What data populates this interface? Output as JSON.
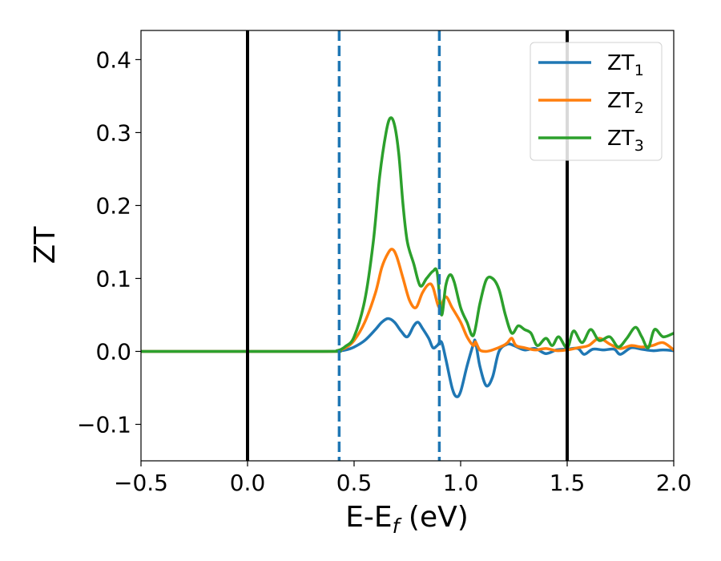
{
  "chart_data": {
    "type": "line",
    "title": "",
    "xlabel": "E-E",
    "xlabel_sub": "f",
    "xlabel_unit": " (eV)",
    "ylabel": "ZT",
    "xlim": [
      -0.5,
      2.0
    ],
    "ylim": [
      -0.15,
      0.44
    ],
    "xticks": [
      -0.5,
      0.0,
      0.5,
      1.0,
      1.5,
      2.0
    ],
    "xtick_labels": [
      "−0.5",
      "0.0",
      "0.5",
      "1.0",
      "1.5",
      "2.0"
    ],
    "yticks": [
      -0.1,
      0.0,
      0.1,
      0.2,
      0.3,
      0.4
    ],
    "ytick_labels": [
      "−0.1",
      "0.0",
      "0.1",
      "0.2",
      "0.3",
      "0.4"
    ],
    "grid": false,
    "legend_position": "top-right",
    "vlines": [
      {
        "x": 0.0,
        "style": "solid",
        "color": "#000000"
      },
      {
        "x": 1.5,
        "style": "solid",
        "color": "#000000"
      },
      {
        "x": 0.43,
        "style": "dashed",
        "color": "#1f77b4"
      },
      {
        "x": 0.9,
        "style": "dashed",
        "color": "#1f77b4"
      }
    ],
    "series": [
      {
        "name": "ZT",
        "sub": "1",
        "color": "#1f77b4",
        "points": [
          [
            -0.5,
            0
          ],
          [
            0.35,
            0
          ],
          [
            0.42,
            0.0005
          ],
          [
            0.46,
            0.002
          ],
          [
            0.5,
            0.006
          ],
          [
            0.55,
            0.015
          ],
          [
            0.6,
            0.03
          ],
          [
            0.63,
            0.04
          ],
          [
            0.66,
            0.045
          ],
          [
            0.69,
            0.04
          ],
          [
            0.72,
            0.028
          ],
          [
            0.75,
            0.02
          ],
          [
            0.78,
            0.035
          ],
          [
            0.8,
            0.04
          ],
          [
            0.82,
            0.032
          ],
          [
            0.85,
            0.018
          ],
          [
            0.87,
            0.005
          ],
          [
            0.89,
            0.008
          ],
          [
            0.91,
            0.013
          ],
          [
            0.93,
            -0.01
          ],
          [
            0.96,
            -0.05
          ],
          [
            0.98,
            -0.062
          ],
          [
            1.0,
            -0.055
          ],
          [
            1.03,
            -0.02
          ],
          [
            1.06,
            0.01
          ],
          [
            1.07,
            0.013
          ],
          [
            1.09,
            -0.02
          ],
          [
            1.12,
            -0.047
          ],
          [
            1.15,
            -0.035
          ],
          [
            1.18,
            0.0
          ],
          [
            1.22,
            0.01
          ],
          [
            1.25,
            0.008
          ],
          [
            1.3,
            0.002
          ],
          [
            1.35,
            0.004
          ],
          [
            1.4,
            -0.003
          ],
          [
            1.45,
            0.002
          ],
          [
            1.5,
            0.003
          ],
          [
            1.55,
            0.004
          ],
          [
            1.58,
            -0.004
          ],
          [
            1.62,
            0.003
          ],
          [
            1.67,
            0.002
          ],
          [
            1.72,
            0.003
          ],
          [
            1.75,
            -0.004
          ],
          [
            1.8,
            0.005
          ],
          [
            1.85,
            0.003
          ],
          [
            1.9,
            0.001
          ],
          [
            1.95,
            0.002
          ],
          [
            2.0,
            0.001
          ]
        ]
      },
      {
        "name": "ZT",
        "sub": "2",
        "color": "#ff7f0e",
        "points": [
          [
            -0.5,
            0
          ],
          [
            0.35,
            0
          ],
          [
            0.42,
            0.001
          ],
          [
            0.46,
            0.005
          ],
          [
            0.5,
            0.015
          ],
          [
            0.55,
            0.04
          ],
          [
            0.6,
            0.08
          ],
          [
            0.63,
            0.115
          ],
          [
            0.66,
            0.135
          ],
          [
            0.68,
            0.14
          ],
          [
            0.7,
            0.13
          ],
          [
            0.73,
            0.1
          ],
          [
            0.76,
            0.07
          ],
          [
            0.79,
            0.06
          ],
          [
            0.82,
            0.08
          ],
          [
            0.85,
            0.092
          ],
          [
            0.87,
            0.088
          ],
          [
            0.9,
            0.06
          ],
          [
            0.93,
            0.075
          ],
          [
            0.96,
            0.06
          ],
          [
            1.0,
            0.04
          ],
          [
            1.03,
            0.02
          ],
          [
            1.06,
            0.008
          ],
          [
            1.07,
            0.013
          ],
          [
            1.09,
            0.002
          ],
          [
            1.12,
            0.0
          ],
          [
            1.15,
            0.002
          ],
          [
            1.2,
            0.008
          ],
          [
            1.22,
            0.012
          ],
          [
            1.24,
            0.018
          ],
          [
            1.26,
            0.008
          ],
          [
            1.3,
            0.005
          ],
          [
            1.35,
            0.002
          ],
          [
            1.4,
            0.004
          ],
          [
            1.45,
            0.001
          ],
          [
            1.5,
            0.002
          ],
          [
            1.55,
            0.005
          ],
          [
            1.6,
            0.008
          ],
          [
            1.65,
            0.018
          ],
          [
            1.7,
            0.01
          ],
          [
            1.75,
            0.004
          ],
          [
            1.8,
            0.008
          ],
          [
            1.85,
            0.006
          ],
          [
            1.9,
            0.008
          ],
          [
            1.95,
            0.012
          ],
          [
            2.0,
            0.002
          ]
        ]
      },
      {
        "name": "ZT",
        "sub": "3",
        "color": "#2ca02c",
        "points": [
          [
            -0.5,
            0
          ],
          [
            0.35,
            0
          ],
          [
            0.42,
            0.001
          ],
          [
            0.46,
            0.007
          ],
          [
            0.5,
            0.02
          ],
          [
            0.55,
            0.07
          ],
          [
            0.59,
            0.15
          ],
          [
            0.62,
            0.24
          ],
          [
            0.65,
            0.3
          ],
          [
            0.67,
            0.32
          ],
          [
            0.69,
            0.31
          ],
          [
            0.71,
            0.27
          ],
          [
            0.73,
            0.2
          ],
          [
            0.75,
            0.15
          ],
          [
            0.78,
            0.12
          ],
          [
            0.81,
            0.09
          ],
          [
            0.84,
            0.1
          ],
          [
            0.87,
            0.11
          ],
          [
            0.89,
            0.108
          ],
          [
            0.91,
            0.05
          ],
          [
            0.93,
            0.09
          ],
          [
            0.95,
            0.105
          ],
          [
            0.97,
            0.095
          ],
          [
            1.0,
            0.06
          ],
          [
            1.03,
            0.04
          ],
          [
            1.06,
            0.022
          ],
          [
            1.09,
            0.065
          ],
          [
            1.12,
            0.098
          ],
          [
            1.15,
            0.1
          ],
          [
            1.18,
            0.085
          ],
          [
            1.21,
            0.05
          ],
          [
            1.24,
            0.025
          ],
          [
            1.27,
            0.035
          ],
          [
            1.3,
            0.03
          ],
          [
            1.33,
            0.025
          ],
          [
            1.36,
            0.008
          ],
          [
            1.4,
            0.018
          ],
          [
            1.43,
            0.008
          ],
          [
            1.46,
            0.02
          ],
          [
            1.5,
            0.005
          ],
          [
            1.53,
            0.028
          ],
          [
            1.57,
            0.012
          ],
          [
            1.61,
            0.03
          ],
          [
            1.65,
            0.015
          ],
          [
            1.7,
            0.02
          ],
          [
            1.74,
            0.006
          ],
          [
            1.78,
            0.018
          ],
          [
            1.82,
            0.033
          ],
          [
            1.85,
            0.02
          ],
          [
            1.88,
            0.005
          ],
          [
            1.91,
            0.03
          ],
          [
            1.95,
            0.02
          ],
          [
            2.0,
            0.025
          ]
        ]
      }
    ]
  }
}
